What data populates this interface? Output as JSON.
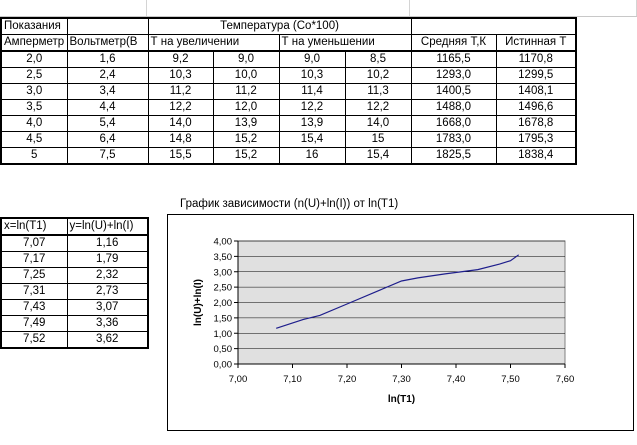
{
  "main_table": {
    "header1": {
      "readings": "Показания",
      "temperature": "Температура (Со*100)"
    },
    "header2": [
      "Амперметр",
      "Вольтметр(В",
      "Т на увеличении",
      "Т на уменьшении",
      "Средняя Т,К",
      "Истинная Т"
    ],
    "rows": [
      [
        "2,0",
        "1,6",
        "9,2",
        "9,0",
        "9,0",
        "8,5",
        "1165,5",
        "1170,8"
      ],
      [
        "2,5",
        "2,4",
        "10,3",
        "10,0",
        "10,3",
        "10,2",
        "1293,0",
        "1299,5"
      ],
      [
        "3,0",
        "3,4",
        "11,2",
        "11,2",
        "11,4",
        "11,3",
        "1400,5",
        "1408,1"
      ],
      [
        "3,5",
        "4,4",
        "12,2",
        "12,0",
        "12,2",
        "12,2",
        "1488,0",
        "1496,6"
      ],
      [
        "4,0",
        "5,4",
        "14,0",
        "13,9",
        "13,9",
        "14,0",
        "1668,0",
        "1678,8"
      ],
      [
        "4,5",
        "6,4",
        "14,8",
        "15,2",
        "15,4",
        "15",
        "1783,0",
        "1795,3"
      ],
      [
        "5",
        "7,5",
        "15,5",
        "15,2",
        "16",
        "15,4",
        "1825,5",
        "1838,4"
      ]
    ]
  },
  "xy_table": {
    "headers": [
      "x=ln(T1)",
      "y=ln(U)+ln(I)"
    ],
    "rows": [
      [
        "7,07",
        "1,16"
      ],
      [
        "7,17",
        "1,79"
      ],
      [
        "7,25",
        "2,32"
      ],
      [
        "7,31",
        "2,73"
      ],
      [
        "7,43",
        "3,07"
      ],
      [
        "7,49",
        "3,36"
      ],
      [
        "7,52",
        "3,62"
      ]
    ]
  },
  "chart_data": {
    "type": "line",
    "title": "График зависимости (n(U)+ln(I)) от ln(T1)",
    "xlabel": "ln(T1)",
    "ylabel": "ln(U)+ln(I)",
    "xlim": [
      7.0,
      7.6
    ],
    "ylim": [
      0.0,
      4.0
    ],
    "xticks": [
      "7,00",
      "7,10",
      "7,20",
      "7,30",
      "7,40",
      "7,50",
      "7,60"
    ],
    "yticks": [
      "0,00",
      "0,50",
      "1,00",
      "1,50",
      "2,00",
      "2,50",
      "3,00",
      "3,50",
      "4,00"
    ],
    "x": [
      7.07,
      7.12,
      7.15,
      7.2,
      7.26,
      7.3,
      7.33,
      7.38,
      7.44,
      7.48,
      7.5,
      7.515
    ],
    "y": [
      1.16,
      1.45,
      1.58,
      1.95,
      2.4,
      2.7,
      2.8,
      2.93,
      3.07,
      3.25,
      3.36,
      3.55
    ],
    "grid": true,
    "plot_background": "#e0e0e0",
    "line_color": "#1e1e8c",
    "legend": "none"
  }
}
